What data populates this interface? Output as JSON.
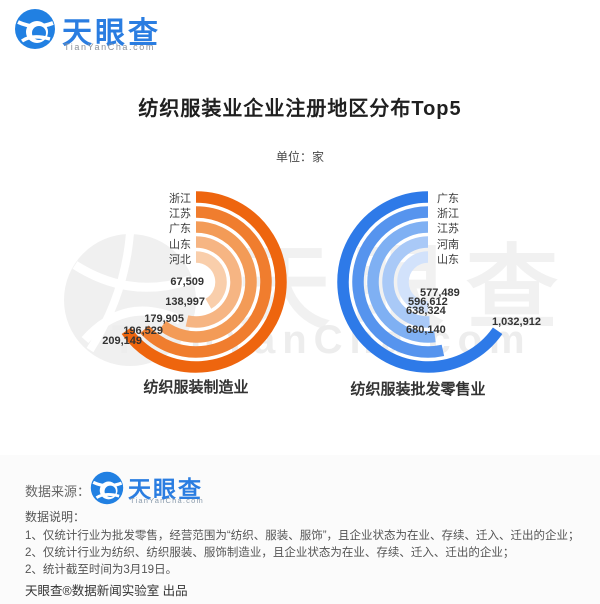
{
  "header": {
    "logo_text": "天眼查",
    "logo_domain": "TianYanCha.com"
  },
  "title": "纺织服装业企业注册地区分布Top5",
  "unit_label": "单位：家",
  "watermark": {
    "cjk": "天眼查",
    "latin": "TianYanCha.com"
  },
  "chart_data": [
    {
      "type": "radial_bar",
      "title": "纺织服装制造业",
      "unit": "家",
      "label_side": "left",
      "sweep_direction": "clockwise",
      "start": "top",
      "categories": [
        "浙江",
        "江苏",
        "广东",
        "山东",
        "河北"
      ],
      "values": [
        209149,
        196529,
        179905,
        138997,
        67509
      ],
      "value_labels": [
        "209,149",
        "196,529",
        "179,905",
        "138,997",
        "67,509"
      ],
      "ring_colors": [
        "#ee650e",
        "#f07d2e",
        "#f39b57",
        "#f6b583",
        "#f9ceab"
      ],
      "order": "outermost-to-innermost"
    },
    {
      "type": "radial_bar",
      "title": "纺织服装批发零售业",
      "unit": "家",
      "label_side": "right",
      "sweep_direction": "counterclockwise",
      "start": "top",
      "categories": [
        "广东",
        "浙江",
        "江苏",
        "河南",
        "山东"
      ],
      "values": [
        1032912,
        680140,
        638324,
        596612,
        577489
      ],
      "value_labels": [
        "1,032,912",
        "680,140",
        "638,324",
        "596,612",
        "577,489"
      ],
      "ring_colors": [
        "#2e7ae8",
        "#5694ee",
        "#7fb0f3",
        "#a9c9f7",
        "#d2e2fb"
      ],
      "order": "outermost-to-innermost"
    }
  ],
  "source": {
    "label": "数据来源：",
    "logo_text": "天眼查",
    "logo_domain": "TianYanCha.com"
  },
  "notes": {
    "heading": "数据说明：",
    "items": [
      "1、仅统计行业为批发零售，经营范围为“纺织、服装、服饰”，且企业状态为在业、存续、迁入、迁出的企业；",
      "2、仅统计行业为纺织、纺织服装、服饰制造业，且企业状态为在业、存续、迁入、迁出的企业；",
      "2、统计截至时间为3月19日。"
    ]
  },
  "footer": "天眼查®数据新闻实验室 出品"
}
